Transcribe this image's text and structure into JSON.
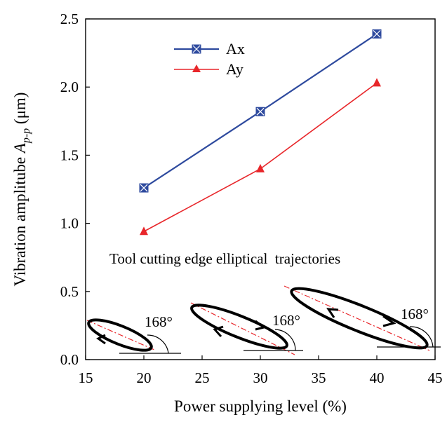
{
  "chart_data": {
    "type": "line",
    "title": "",
    "xlabel": "Power supplying level (%)",
    "ylabel_main": "Vibration amplitube ",
    "ylabel_symbol": "A",
    "ylabel_sub": "p-p",
    "ylabel_unit": " (μm)",
    "xlim": [
      15,
      45
    ],
    "ylim": [
      0.0,
      2.5
    ],
    "xticks": [
      "15",
      "20",
      "25",
      "30",
      "35",
      "40",
      "45"
    ],
    "yticks": [
      "0.0",
      "0.5",
      "1.0",
      "1.5",
      "2.0",
      "2.5"
    ],
    "grid": false,
    "legend_position": "top-left",
    "x": [
      20,
      30,
      40
    ],
    "series": [
      {
        "name": "Ax",
        "values": [
          1.26,
          1.82,
          2.39
        ],
        "color": "#2e4a9e",
        "marker": "square-x"
      },
      {
        "name": "Ay",
        "values": [
          0.94,
          1.4,
          2.03
        ],
        "color": "#e8262a",
        "marker": "triangle"
      }
    ],
    "annotation": "Tool cutting edge elliptical  trajectories",
    "ellipse_angle_label": "168°",
    "ellipse_angles": [
      "168°",
      "168°",
      "168°"
    ]
  }
}
